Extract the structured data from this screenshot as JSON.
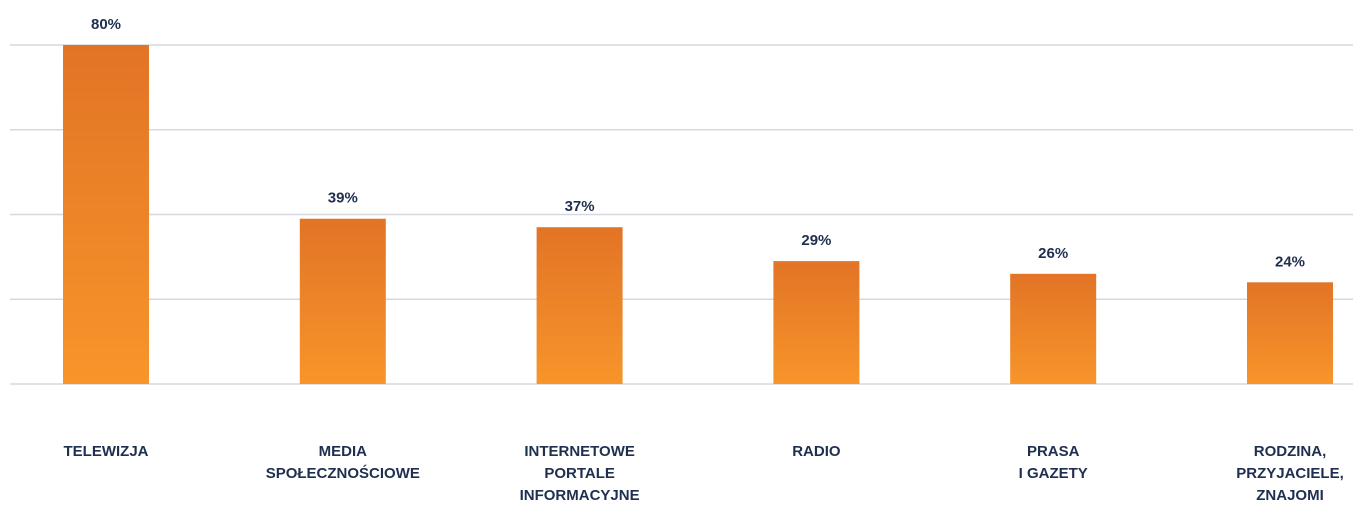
{
  "chart_data": {
    "type": "bar",
    "categories": [
      [
        "TELEWIZJA"
      ],
      [
        "MEDIA",
        "SPOŁECZNOŚCIOWE"
      ],
      [
        "INTERNETOWE",
        "PORTALE",
        "INFORMACYJNE"
      ],
      [
        "RADIO"
      ],
      [
        "PRASA",
        "I GAZETY"
      ],
      [
        "RODZINA,",
        "PRZYJACIELE,",
        "ZNAJOMI"
      ]
    ],
    "values": [
      80,
      39,
      37,
      29,
      26,
      24
    ],
    "value_labels": [
      "80%",
      "39%",
      "37%",
      "29%",
      "26%",
      "24%"
    ],
    "ylim": [
      0,
      80
    ],
    "grid": true,
    "bar_gradient": {
      "top": "#e27426",
      "bottom": "#f7952a"
    },
    "text_color": "#1f2f4f",
    "grid_color": "#d6d8e0"
  }
}
